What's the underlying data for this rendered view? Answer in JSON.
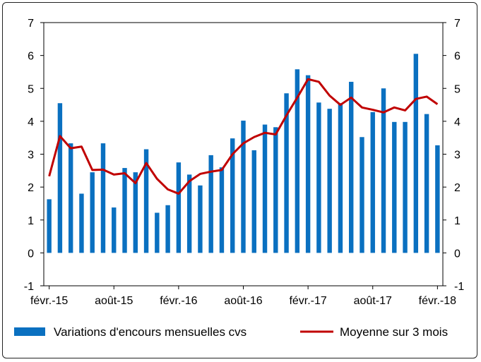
{
  "chart_data": {
    "type": "bar",
    "series": [
      {
        "name": "Variations d'encours mensuelles cvs",
        "kind": "bar",
        "color": "#0a70c0",
        "values": [
          1.63,
          4.55,
          3.33,
          1.8,
          2.45,
          3.33,
          1.38,
          2.58,
          2.45,
          3.15,
          1.22,
          1.45,
          2.75,
          2.38,
          2.05,
          2.97,
          2.6,
          3.48,
          4.02,
          3.12,
          3.9,
          3.82,
          4.85,
          5.58,
          5.4,
          4.57,
          4.38,
          4.55,
          5.2,
          3.52,
          4.28,
          5.0,
          3.98,
          3.98,
          6.05,
          4.22,
          3.27
        ]
      },
      {
        "name": "Moyenne sur 3 mois",
        "kind": "line",
        "color": "#c00000",
        "values": [
          2.33,
          3.55,
          3.18,
          3.23,
          2.52,
          2.53,
          2.38,
          2.42,
          2.12,
          2.73,
          2.25,
          1.93,
          1.8,
          2.18,
          2.4,
          2.47,
          2.52,
          3.0,
          3.33,
          3.52,
          3.65,
          3.6,
          4.18,
          4.72,
          5.28,
          5.2,
          4.78,
          4.5,
          4.72,
          4.42,
          4.35,
          4.27,
          4.42,
          4.33,
          4.68,
          4.75,
          4.52
        ]
      }
    ],
    "xtick_labels": [
      "févr.-15",
      "août-15",
      "févr.-16",
      "août-16",
      "févr.-17",
      "août-17",
      "févr.-18"
    ],
    "xtick_period_index": [
      0,
      6,
      12,
      18,
      24,
      30,
      36
    ],
    "yticks_left": [
      "7",
      "6",
      "5",
      "4",
      "3",
      "2",
      "1",
      "0",
      "-1"
    ],
    "yticks_right": [
      "7",
      "6",
      "5",
      "4",
      "3",
      "2",
      "1",
      "0",
      "-1"
    ],
    "ylim": [
      -1,
      7
    ],
    "grid": false,
    "legend_position": "bottom"
  }
}
